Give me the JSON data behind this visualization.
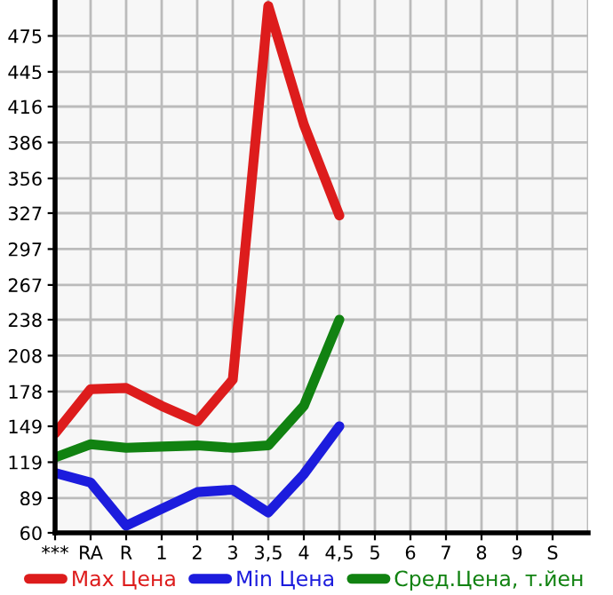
{
  "chart_data": {
    "type": "line",
    "categories": [
      "***",
      "RA",
      "R",
      "1",
      "2",
      "3",
      "3,5",
      "4",
      "4,5",
      "5",
      "6",
      "7",
      "8",
      "9",
      "S"
    ],
    "series": [
      {
        "name": "Max Цена",
        "color": "#dd1c1c",
        "values": [
          143,
          180,
          181,
          166,
          153,
          188,
          500,
          401,
          325,
          null,
          null,
          null,
          null,
          null,
          null
        ]
      },
      {
        "name": "Min Цена",
        "color": "#1c1cdd",
        "values": [
          110,
          102,
          66,
          80,
          94,
          96,
          77,
          109,
          149,
          null,
          null,
          null,
          null,
          null,
          null
        ]
      },
      {
        "name": "Сред.Цена, т.йен",
        "color": "#118211",
        "values": [
          123,
          134,
          131,
          132,
          133,
          131,
          133,
          166,
          238,
          null,
          null,
          null,
          null,
          null,
          null
        ]
      }
    ],
    "ylim": [
      60,
      505
    ],
    "yticks": [
      60,
      89,
      119,
      149,
      178,
      208,
      238,
      267,
      297,
      327,
      356,
      386,
      416,
      445,
      475
    ],
    "grid": true,
    "legend": "bottom",
    "marker": "none",
    "line_style": "solid"
  }
}
